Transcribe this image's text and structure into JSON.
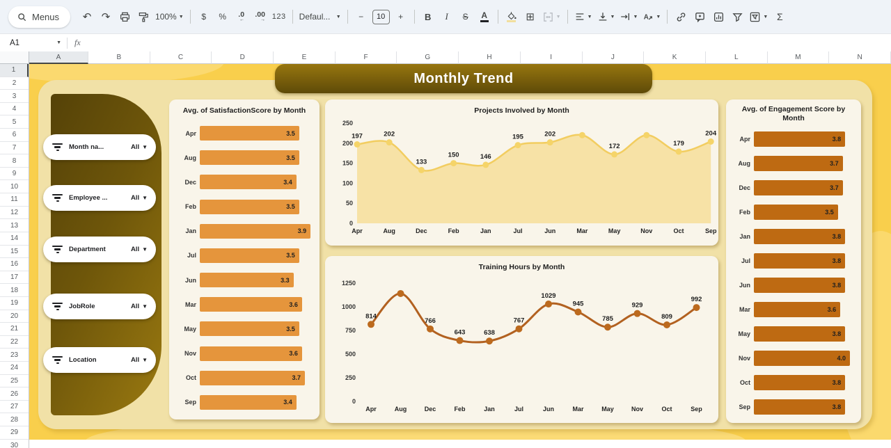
{
  "toolbar": {
    "menus": "Menus",
    "zoom": "100%",
    "currency": "$",
    "percent": "%",
    "decrease_decimal": ".0",
    "increase_decimal": ".00",
    "number_format": "123",
    "font_family": "Defaul...",
    "font_size": "10",
    "minus": "−",
    "plus": "+",
    "bold": "B",
    "italic": "I",
    "strikethrough": "S",
    "text_color": "A",
    "rotation_letter": "A",
    "functions": "Σ",
    "undo": "↶",
    "redo": "↷"
  },
  "formula_bar": {
    "cell_reference": "A1",
    "fx_label": "fx"
  },
  "grid": {
    "column_headers": [
      "A",
      "B",
      "C",
      "D",
      "E",
      "F",
      "G",
      "H",
      "I",
      "J",
      "K",
      "L",
      "M",
      "N"
    ],
    "row_numbers": [
      1,
      2,
      3,
      4,
      5,
      6,
      7,
      8,
      9,
      10,
      11,
      12,
      13,
      14,
      15,
      16,
      17,
      18,
      19,
      20,
      21,
      22,
      23,
      24,
      25,
      26,
      27,
      28,
      29,
      30
    ]
  },
  "dashboard": {
    "title": "Monthly Trend",
    "filters": [
      {
        "label": "Month na...",
        "value": "All"
      },
      {
        "label": "Employee ...",
        "value": "All"
      },
      {
        "label": "Department",
        "value": "All"
      },
      {
        "label": "JobRole",
        "value": "All"
      },
      {
        "label": "Location",
        "value": "All"
      }
    ],
    "colors": {
      "outer_bg": "#F9CF4C",
      "panel_bg": "#F1E1A7",
      "banner_top": "#97760F",
      "banner_bottom": "#5E4A08",
      "card_bg": "#F9F5EA",
      "satisfaction_bar": "#E5953C",
      "engagement_bar": "#BE6A12",
      "projects_line": "#F2CD60",
      "projects_fill": "#F7E2A6",
      "training_line": "#B26120"
    }
  },
  "chart_data": [
    {
      "type": "bar",
      "orientation": "horizontal",
      "title": "Avg. of SatisfactionScore by Month",
      "categories": [
        "Apr",
        "Aug",
        "Dec",
        "Feb",
        "Jan",
        "Jul",
        "Jun",
        "Mar",
        "May",
        "Nov",
        "Oct",
        "Sep"
      ],
      "values": [
        3.5,
        3.5,
        3.4,
        3.5,
        3.9,
        3.5,
        3.3,
        3.6,
        3.5,
        3.6,
        3.7,
        3.4
      ],
      "value_labels": [
        "3.5",
        "3.5",
        "3.4",
        "3.5",
        "3.9",
        "3.5",
        "3.3",
        "3.6",
        "3.5",
        "3.6",
        "3.7",
        "3.4"
      ],
      "xlim": [
        0,
        3.9
      ],
      "bar_color": "#E5953C",
      "grid": false,
      "legend": "none"
    },
    {
      "type": "area",
      "title": "Projects Involved by Month",
      "categories": [
        "Apr",
        "Aug",
        "Dec",
        "Feb",
        "Jan",
        "Jul",
        "Jun",
        "Mar",
        "May",
        "Nov",
        "Oct",
        "Sep"
      ],
      "values": [
        197,
        202,
        133,
        150,
        146,
        195,
        202,
        220,
        172,
        220,
        179,
        204
      ],
      "value_labels": [
        "197",
        "202",
        "133",
        "150",
        "146",
        "195",
        "202",
        "",
        "172",
        "",
        "179",
        "204"
      ],
      "ylim": [
        0,
        250
      ],
      "yticks": [
        0,
        50,
        100,
        150,
        200,
        250
      ],
      "line_color": "#F2CD60",
      "fill_color": "#F7E2A6",
      "marker_color": "#F5D469",
      "grid": false,
      "legend": "none"
    },
    {
      "type": "line",
      "title": "Training Hours by Month",
      "categories": [
        "Apr",
        "Aug",
        "Dec",
        "Feb",
        "Jan",
        "Jul",
        "Jun",
        "Mar",
        "May",
        "Nov",
        "Oct",
        "Sep"
      ],
      "values": [
        814,
        1140,
        766,
        643,
        638,
        767,
        1029,
        945,
        785,
        929,
        809,
        992
      ],
      "value_labels": [
        "814",
        "",
        "766",
        "643",
        "638",
        "767",
        "1029",
        "945",
        "785",
        "929",
        "809",
        "992"
      ],
      "ylim": [
        0,
        1250
      ],
      "yticks": [
        0,
        250,
        500,
        750,
        1000,
        1250
      ],
      "line_color": "#B26120",
      "marker_color": "#BC6A1E",
      "grid": false,
      "legend": "none"
    },
    {
      "type": "bar",
      "orientation": "horizontal",
      "title": "Avg. of Engagement Score by Month",
      "categories": [
        "Apr",
        "Aug",
        "Dec",
        "Feb",
        "Jan",
        "Jul",
        "Jun",
        "Mar",
        "May",
        "Nov",
        "Oct",
        "Sep"
      ],
      "values": [
        3.8,
        3.7,
        3.7,
        3.5,
        3.8,
        3.8,
        3.8,
        3.6,
        3.8,
        4.0,
        3.8,
        3.8
      ],
      "value_labels": [
        "3.8",
        "3.7",
        "3.7",
        "3.5",
        "3.8",
        "3.8",
        "3.8",
        "3.6",
        "3.8",
        "4.0",
        "3.8",
        "3.8"
      ],
      "xlim": [
        0,
        4.0
      ],
      "bar_color": "#BE6A12",
      "grid": false,
      "legend": "none"
    }
  ]
}
